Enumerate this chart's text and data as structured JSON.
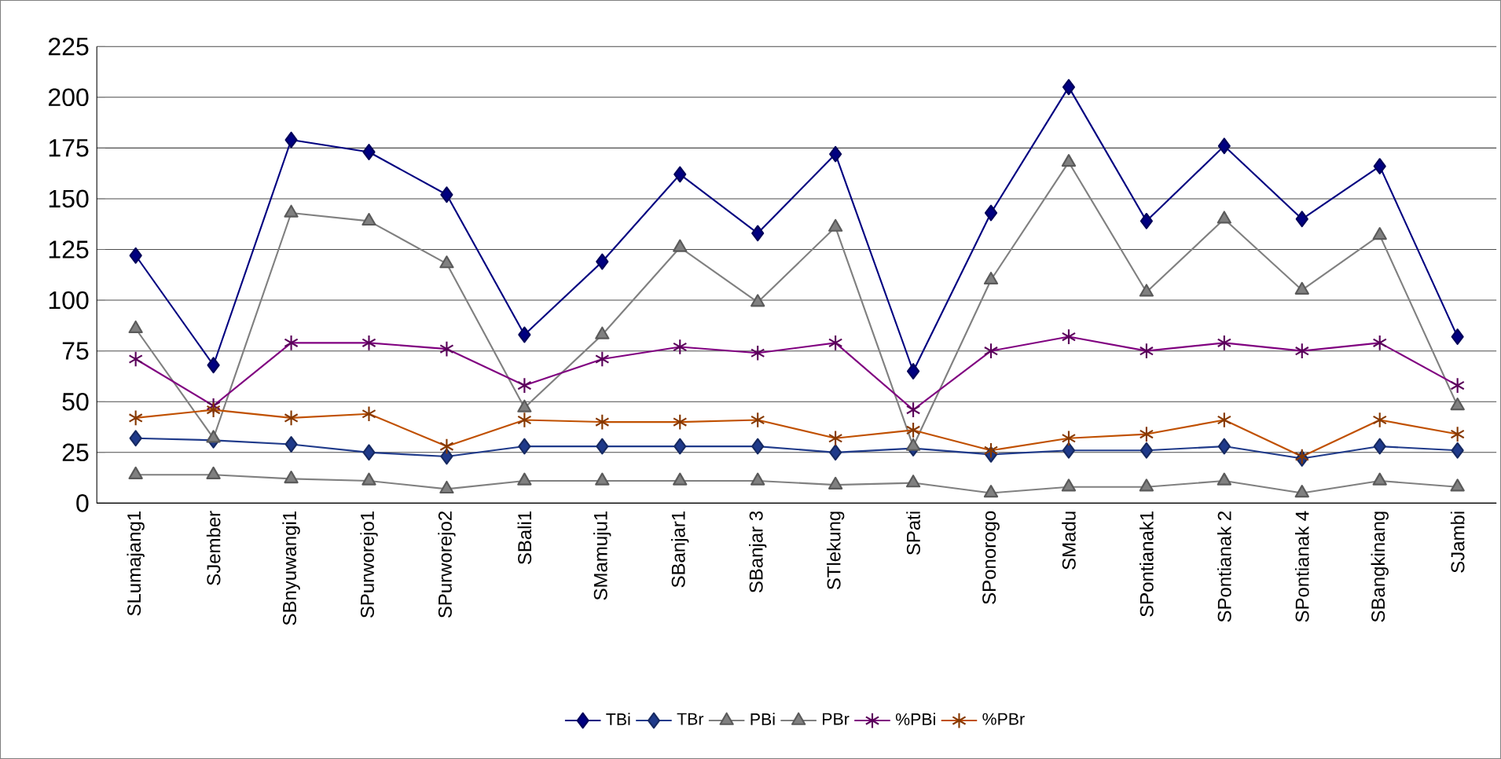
{
  "chart_data": {
    "type": "line",
    "categories": [
      "SLumajang1",
      "SJember",
      "SBnyuwangi1",
      "SPurworejo1",
      "SPurworejo2",
      "SBali1",
      "SMamuju1",
      "SBanjar1",
      "SBanjar 3",
      "STlekung",
      "SPati",
      "SPonorogo",
      "SMadu",
      "SPontianak1",
      "SPontianak 2",
      "SPontianak 4",
      "SBangkinang",
      "SJambi"
    ],
    "series": [
      {
        "name": "TBi",
        "color": "#000080",
        "marker": "diamond",
        "values": [
          122,
          68,
          179,
          173,
          152,
          83,
          119,
          162,
          133,
          172,
          65,
          143,
          205,
          139,
          176,
          140,
          166,
          82
        ]
      },
      {
        "name": "TBr",
        "color": "#1f3a8a",
        "marker": "diamond",
        "values": [
          32,
          31,
          29,
          25,
          23,
          28,
          28,
          28,
          28,
          25,
          27,
          24,
          26,
          26,
          28,
          22,
          28,
          26
        ]
      },
      {
        "name": "PBi",
        "color": "#808080",
        "marker": "triangle",
        "values": [
          86,
          32,
          143,
          139,
          118,
          47,
          83,
          126,
          99,
          136,
          28,
          110,
          168,
          104,
          140,
          105,
          132,
          48
        ]
      },
      {
        "name": "PBr",
        "color": "#808080",
        "marker": "triangle",
        "values": [
          14,
          14,
          12,
          11,
          7,
          11,
          11,
          11,
          11,
          9,
          10,
          5,
          8,
          8,
          11,
          5,
          11,
          8
        ]
      },
      {
        "name": "%PBi",
        "color": "#800080",
        "marker": "cross",
        "values": [
          71,
          48,
          79,
          79,
          76,
          58,
          71,
          77,
          74,
          79,
          46,
          75,
          82,
          75,
          79,
          75,
          79,
          58
        ]
      },
      {
        "name": "%PBr",
        "color": "#c05000",
        "marker": "cross",
        "values": [
          42,
          46,
          42,
          44,
          28,
          41,
          40,
          40,
          41,
          32,
          36,
          26,
          32,
          34,
          41,
          23,
          41,
          34
        ]
      }
    ],
    "ylim": [
      0,
      225
    ],
    "yticks": [
      0,
      25,
      50,
      75,
      100,
      125,
      150,
      175,
      200,
      225
    ],
    "grid": "y",
    "legend": "bottom",
    "line_style": "solid"
  }
}
